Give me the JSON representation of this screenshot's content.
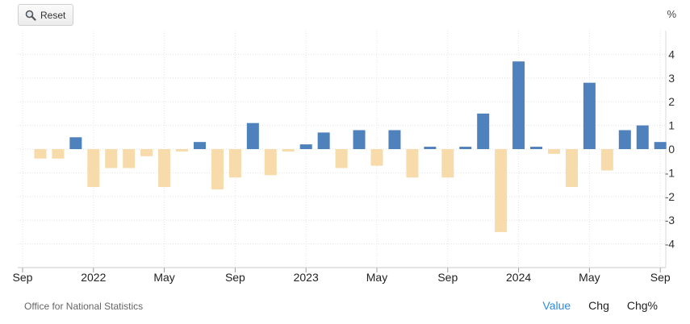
{
  "toolbar": {
    "reset_label": "Reset",
    "reset_icon": "magnifier-icon"
  },
  "footer": {
    "source": "Office for National Statistics",
    "modes": [
      "Value",
      "Chg",
      "Chg%"
    ],
    "active_mode": "Value"
  },
  "chart_data": {
    "type": "bar",
    "unit_label": "%",
    "x_tick_labels": [
      {
        "label": "Sep",
        "at": "2021-09"
      },
      {
        "label": "2022",
        "at": "2022-01"
      },
      {
        "label": "May",
        "at": "2022-05"
      },
      {
        "label": "Sep",
        "at": "2022-09"
      },
      {
        "label": "2023",
        "at": "2023-01"
      },
      {
        "label": "May",
        "at": "2023-05"
      },
      {
        "label": "Sep",
        "at": "2023-09"
      },
      {
        "label": "2024",
        "at": "2024-01"
      },
      {
        "label": "May",
        "at": "2024-05"
      },
      {
        "label": "Sep",
        "at": "2024-09"
      }
    ],
    "categories": [
      "2021-10",
      "2021-11",
      "2021-12",
      "2022-01",
      "2022-02",
      "2022-03",
      "2022-04",
      "2022-05",
      "2022-06",
      "2022-07",
      "2022-08",
      "2022-09",
      "2022-10",
      "2022-11",
      "2022-12",
      "2023-01",
      "2023-02",
      "2023-03",
      "2023-04",
      "2023-05",
      "2023-06",
      "2023-07",
      "2023-08",
      "2023-09",
      "2023-10",
      "2023-11",
      "2023-12",
      "2024-01",
      "2024-02",
      "2024-03",
      "2024-04",
      "2024-05",
      "2024-06",
      "2024-07",
      "2024-08",
      "2024-09"
    ],
    "values": [
      -0.4,
      -0.4,
      0.5,
      -1.6,
      -0.8,
      -0.8,
      -0.3,
      -1.6,
      -0.1,
      0.3,
      -1.7,
      -1.2,
      1.1,
      -1.1,
      -0.1,
      0.2,
      0.7,
      -0.8,
      0.8,
      -0.7,
      0.8,
      -1.2,
      0.1,
      -1.2,
      0.1,
      1.5,
      -3.5,
      3.7,
      0.1,
      -0.2,
      -1.6,
      2.8,
      -0.9,
      0.8,
      1.0,
      0.3
    ],
    "y_ticks": [
      -4,
      -3,
      -2,
      -1,
      0,
      1,
      2,
      3,
      4
    ],
    "ylim": [
      -5,
      5
    ],
    "colors": {
      "positive": "#4f81bd",
      "negative": "#f7dbab"
    },
    "grid": true
  }
}
